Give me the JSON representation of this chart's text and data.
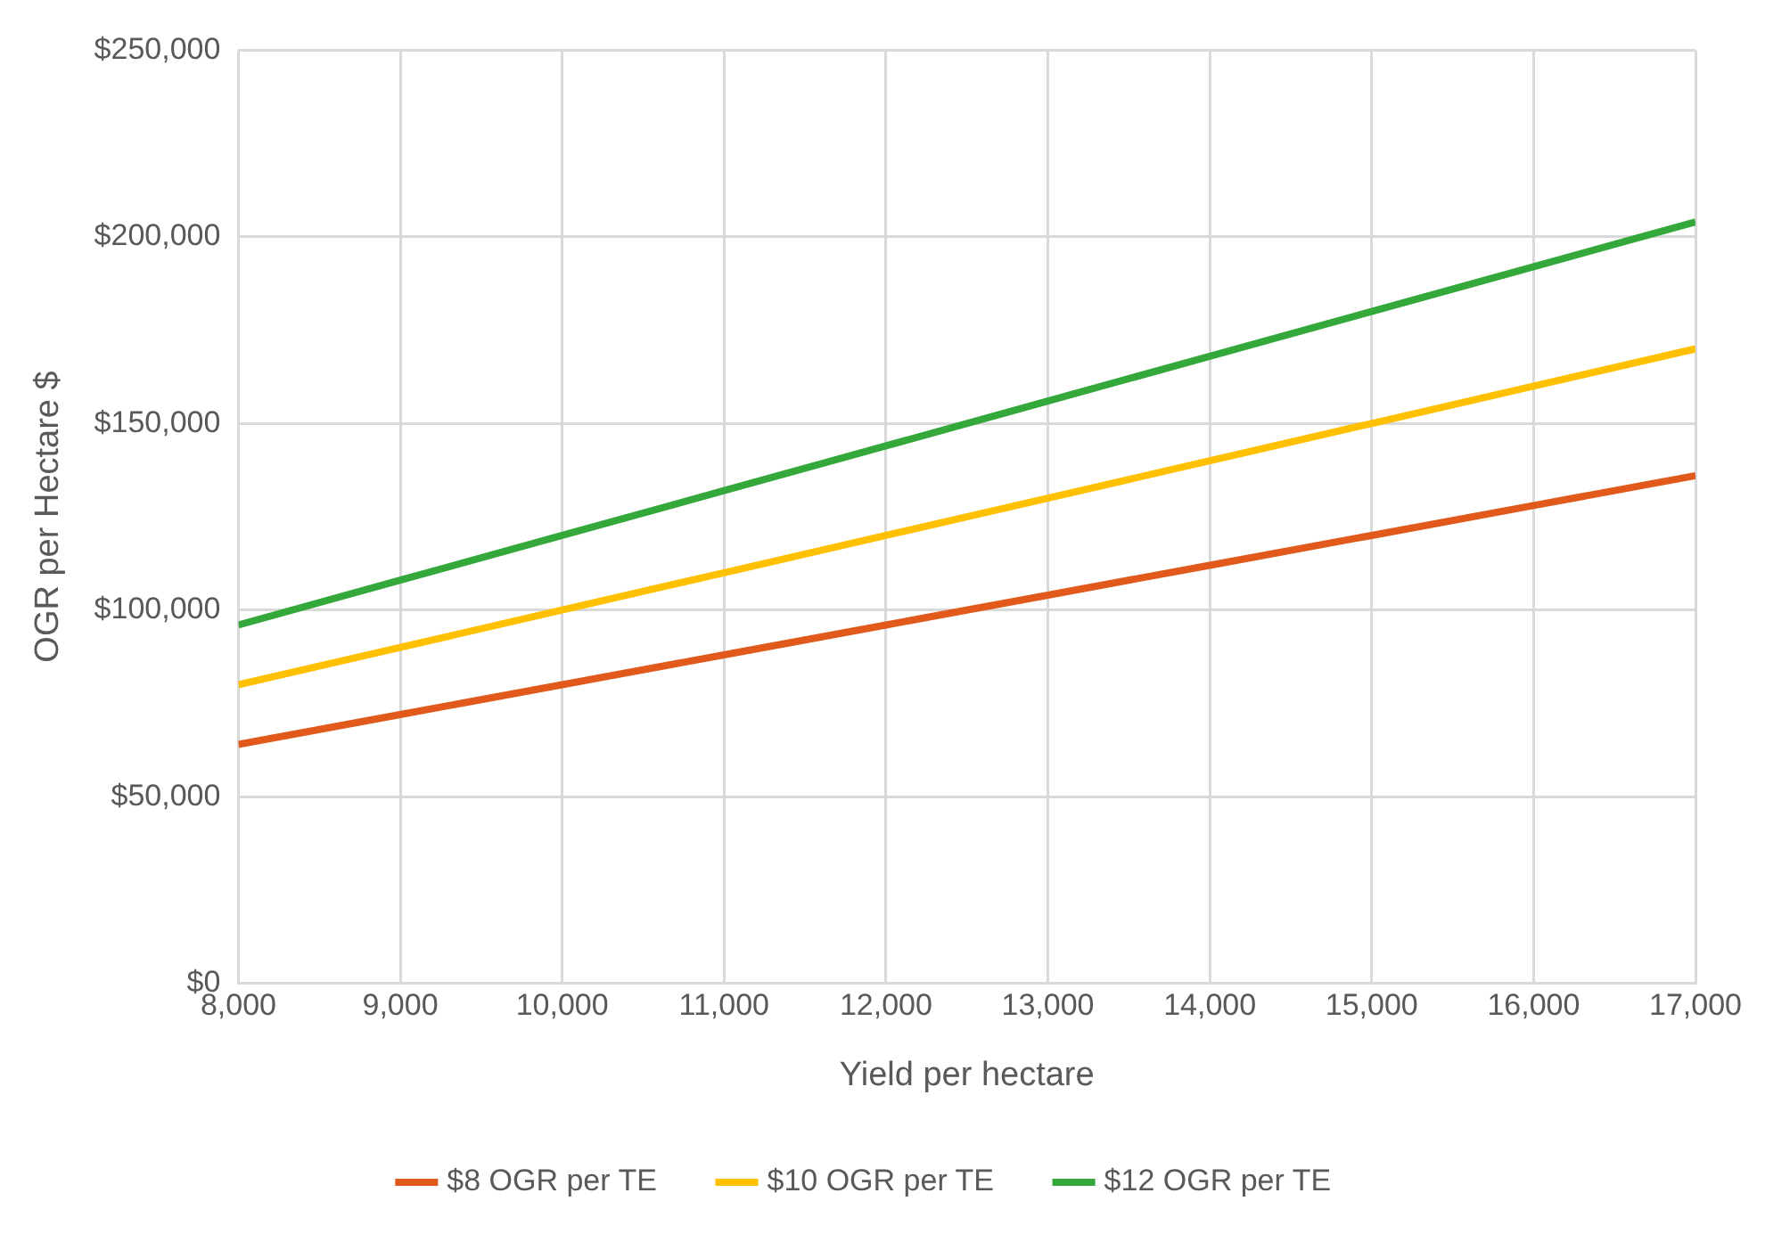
{
  "chart_data": {
    "type": "line",
    "xlabel": "Yield per hectare",
    "ylabel": "OGR per Hectare $",
    "x": [
      8000,
      9000,
      10000,
      11000,
      12000,
      13000,
      14000,
      15000,
      16000,
      17000
    ],
    "series": [
      {
        "name": "$8 OGR per TE",
        "color": "#e15a1c",
        "values": [
          64000,
          72000,
          80000,
          88000,
          96000,
          104000,
          112000,
          120000,
          128000,
          136000
        ]
      },
      {
        "name": "$10 OGR per TE",
        "color": "#ffc000",
        "values": [
          80000,
          90000,
          100000,
          110000,
          120000,
          130000,
          140000,
          150000,
          160000,
          170000
        ]
      },
      {
        "name": "$12 OGR per TE",
        "color": "#34a83a",
        "values": [
          96000,
          108000,
          120000,
          132000,
          144000,
          156000,
          168000,
          180000,
          192000,
          204000
        ]
      }
    ],
    "xlim": [
      8000,
      17000
    ],
    "xticks": [
      {
        "value": 8000,
        "label": "8,000"
      },
      {
        "value": 9000,
        "label": "9,000"
      },
      {
        "value": 10000,
        "label": "10,000"
      },
      {
        "value": 11000,
        "label": "11,000"
      },
      {
        "value": 12000,
        "label": "12,000"
      },
      {
        "value": 13000,
        "label": "13,000"
      },
      {
        "value": 14000,
        "label": "14,000"
      },
      {
        "value": 15000,
        "label": "15,000"
      },
      {
        "value": 16000,
        "label": "16,000"
      },
      {
        "value": 17000,
        "label": "17,000"
      }
    ],
    "ylim": [
      0,
      250000
    ],
    "yticks": [
      {
        "value": 0,
        "label": "$0"
      },
      {
        "value": 50000,
        "label": "$50,000"
      },
      {
        "value": 100000,
        "label": "$100,000"
      },
      {
        "value": 150000,
        "label": "$150,000"
      },
      {
        "value": 200000,
        "label": "$200,000"
      },
      {
        "value": 250000,
        "label": "$250,000"
      }
    ],
    "grid": true,
    "legend": "bottom",
    "marker": "none",
    "line_style": "solid"
  }
}
